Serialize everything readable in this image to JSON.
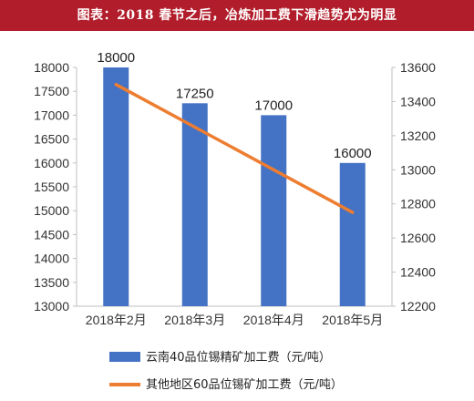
{
  "title": "图表：2018 春节之后，冶炼加工费下滑趋势尤为明显",
  "chart_data": {
    "type": "bar",
    "categories": [
      "2018年2月",
      "2018年3月",
      "2018年4月",
      "2018年5月"
    ],
    "series": [
      {
        "name": "云南40品位锡精矿加工费（元/吨）",
        "type": "bar",
        "axis": "left",
        "color": "#4472c4",
        "values": [
          18000,
          17250,
          17000,
          16000
        ],
        "data_labels": [
          "18000",
          "17250",
          "17000",
          "16000"
        ]
      },
      {
        "name": "其他地区60品位锡矿加工费（元/吨）",
        "type": "line",
        "axis": "right",
        "color": "#ed7d31",
        "values": [
          13500,
          13250,
          13000,
          12750
        ]
      }
    ],
    "y_left": {
      "min": 13000,
      "max": 18000,
      "ticks": [
        13000,
        13500,
        14000,
        14500,
        15000,
        15500,
        16000,
        16500,
        17000,
        17500,
        18000
      ]
    },
    "y_right": {
      "min": 12200,
      "max": 13600,
      "ticks": [
        12200,
        12400,
        12600,
        12800,
        13000,
        13200,
        13400,
        13600
      ]
    },
    "grid": false,
    "legend_position": "bottom"
  }
}
